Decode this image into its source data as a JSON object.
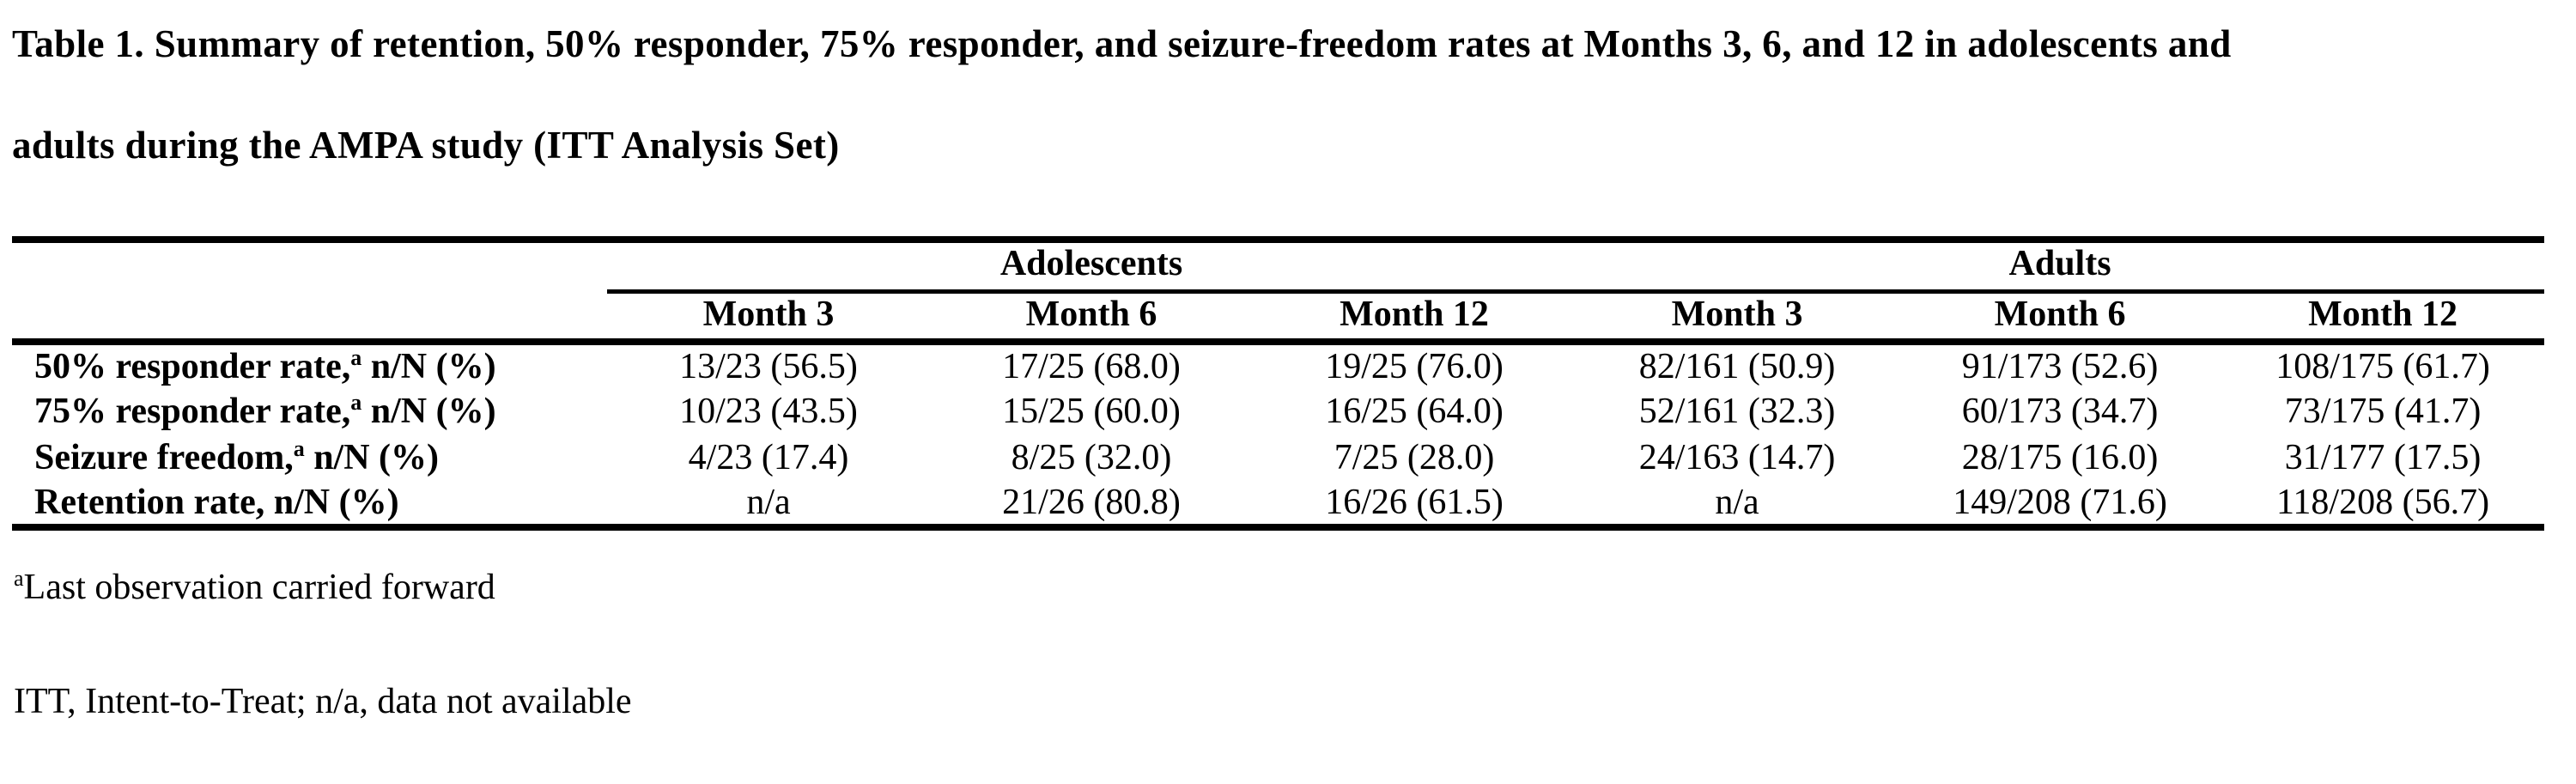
{
  "title": {
    "line1": "Table 1. Summary of retention, 50% responder, 75% responder, and seizure-freedom rates at Months 3, 6, and 12 in adolescents and",
    "line2": "adults during the AMPA study (ITT Analysis Set)"
  },
  "table": {
    "group_headers": {
      "adolescents": "Adolescents",
      "adults": "Adults"
    },
    "col_headers": [
      "Month 3",
      "Month 6",
      "Month 12",
      "Month 3",
      "Month 6",
      "Month 12"
    ],
    "rows": [
      {
        "label_pre": "50% responder rate,",
        "label_sup": "a",
        "label_post": " n/N (%)",
        "values": [
          "13/23 (56.5)",
          "17/25 (68.0)",
          "19/25 (76.0)",
          "82/161 (50.9)",
          "91/173 (52.6)",
          "108/175 (61.7)"
        ]
      },
      {
        "label_pre": "75% responder rate,",
        "label_sup": "a",
        "label_post": " n/N (%)",
        "values": [
          "10/23 (43.5)",
          "15/25 (60.0)",
          "16/25 (64.0)",
          "52/161 (32.3)",
          "60/173 (34.7)",
          "73/175 (41.7)"
        ]
      },
      {
        "label_pre": "Seizure freedom,",
        "label_sup": "a",
        "label_post": " n/N (%)",
        "values": [
          "4/23 (17.4)",
          "8/25 (32.0)",
          "7/25 (28.0)",
          "24/163 (14.7)",
          "28/175 (16.0)",
          "31/177 (17.5)"
        ]
      },
      {
        "label_pre": "Retention rate, n/N (%)",
        "label_sup": "",
        "label_post": "",
        "values": [
          "n/a",
          "21/26 (80.8)",
          "16/26 (61.5)",
          "n/a",
          "149/208 (71.6)",
          "118/208 (56.7)"
        ]
      }
    ]
  },
  "footnotes": {
    "fn1_sup": "a",
    "fn1_text": "Last observation carried forward",
    "fn2_text": "ITT, Intent-to-Treat; n/a, data not available"
  },
  "colors": {
    "text": "#000000",
    "background": "#ffffff",
    "rule": "#000000"
  },
  "chart_data": {
    "type": "table",
    "title": "Table 1. Summary of retention, 50% responder, 75% responder, and seizure-freedom rates at Months 3, 6, and 12 in adolescents and adults during the AMPA study (ITT Analysis Set)",
    "column_groups": [
      "Adolescents",
      "Adults"
    ],
    "columns": [
      "Month 3",
      "Month 6",
      "Month 12",
      "Month 3",
      "Month 6",
      "Month 12"
    ],
    "row_labels": [
      "50% responder rate, n/N (%)",
      "75% responder rate, n/N (%)",
      "Seizure freedom, n/N (%)",
      "Retention rate, n/N (%)"
    ],
    "cells": [
      [
        "13/23 (56.5)",
        "17/25 (68.0)",
        "19/25 (76.0)",
        "82/161 (50.9)",
        "91/173 (52.6)",
        "108/175 (61.7)"
      ],
      [
        "10/23 (43.5)",
        "15/25 (60.0)",
        "16/25 (64.0)",
        "52/161 (32.3)",
        "60/173 (34.7)",
        "73/175 (41.7)"
      ],
      [
        "4/23 (17.4)",
        "8/25 (32.0)",
        "7/25 (28.0)",
        "24/163 (14.7)",
        "28/175 (16.0)",
        "31/177 (17.5)"
      ],
      [
        "n/a",
        "21/26 (80.8)",
        "16/26 (61.5)",
        "n/a",
        "149/208 (71.6)",
        "118/208 (56.7)"
      ]
    ]
  }
}
